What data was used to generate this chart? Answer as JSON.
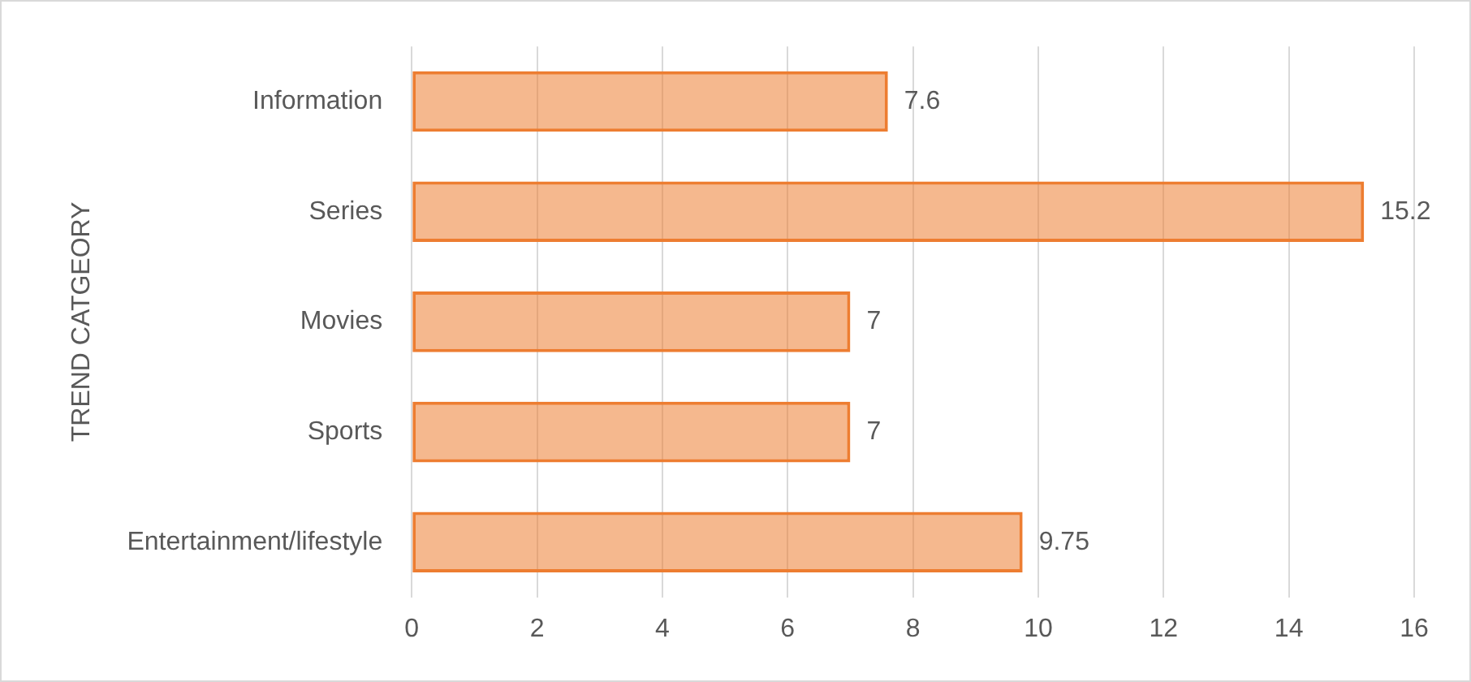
{
  "chart_data": {
    "type": "bar",
    "orientation": "horizontal",
    "ylabel": "TREND CATGEORY",
    "categories": [
      "Information",
      "Series",
      "Movies",
      "Sports",
      "Entertainment/lifestyle"
    ],
    "values": [
      7.6,
      15.2,
      7,
      7,
      9.75
    ],
    "color": "#ed7d31",
    "xlim": [
      0,
      16
    ],
    "xticks": [
      0,
      2,
      4,
      6,
      8,
      10,
      12,
      14,
      16
    ],
    "grid": "x",
    "data_labels": true,
    "legend": false
  }
}
